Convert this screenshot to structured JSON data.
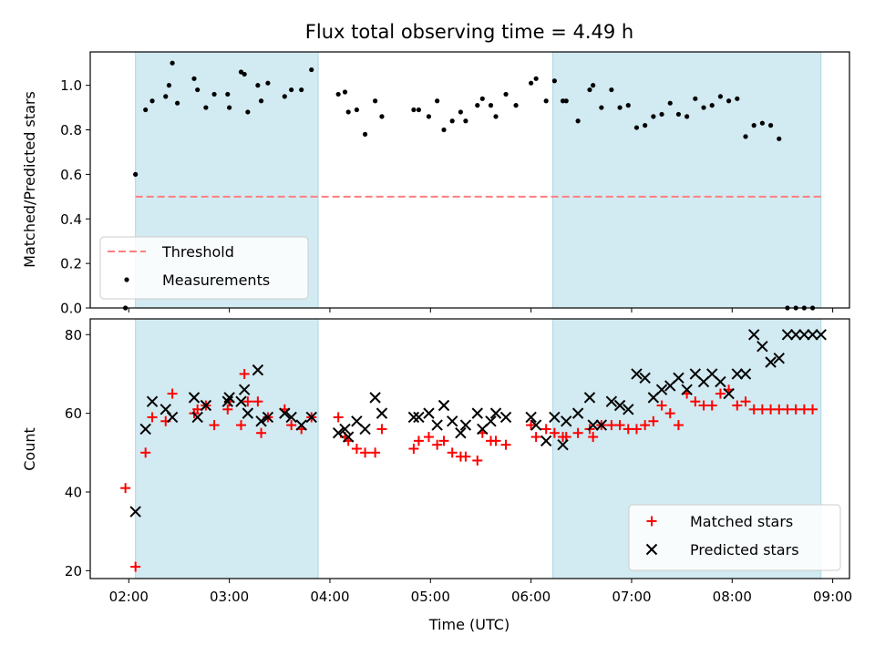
{
  "title": "Flux total observing time = 4.49 h",
  "colors": {
    "shade": "#add8e6",
    "threshold": "#ff7f7f",
    "measurements": "#000000",
    "matched": "#ff0000",
    "predicted": "#000000"
  },
  "chart_data": [
    {
      "type": "scatter",
      "ylabel": "Matched/Predicted stars",
      "ylim": [
        0,
        1.15
      ],
      "yticks": [
        0.0,
        0.2,
        0.4,
        0.6,
        0.8,
        1.0
      ],
      "ytick_labels": [
        "0.0",
        "0.2",
        "0.4",
        "0.6",
        "0.8",
        "1.0"
      ],
      "xlim": [
        "01:37",
        "09:10"
      ],
      "legend_location": "lower left",
      "shaded_ranges": [
        [
          "02:04",
          "03:53"
        ],
        [
          "06:13",
          "08:53"
        ]
      ],
      "threshold": {
        "name": "Threshold",
        "value": 0.5,
        "x_range": [
          "02:04",
          "08:53"
        ],
        "style": "dashed"
      },
      "series": [
        {
          "name": "Measurements",
          "marker": "dot",
          "x": [
            "01:58",
            "02:04",
            "02:10",
            "02:14",
            "02:22",
            "02:24",
            "02:26",
            "02:29",
            "02:39",
            "02:41",
            "02:46",
            "02:51",
            "02:59",
            "03:00",
            "03:07",
            "03:09",
            "03:11",
            "03:17",
            "03:19",
            "03:23",
            "03:33",
            "03:37",
            "03:43",
            "03:49",
            "04:05",
            "04:09",
            "04:11",
            "04:16",
            "04:21",
            "04:27",
            "04:31",
            "04:50",
            "04:53",
            "04:59",
            "05:04",
            "05:08",
            "05:13",
            "05:18",
            "05:21",
            "05:28",
            "05:31",
            "05:36",
            "05:39",
            "05:45",
            "05:51",
            "06:00",
            "06:03",
            "06:09",
            "06:14",
            "06:19",
            "06:21",
            "06:28",
            "06:35",
            "06:37",
            "06:42",
            "06:48",
            "06:53",
            "06:58",
            "07:03",
            "07:08",
            "07:13",
            "07:18",
            "07:23",
            "07:28",
            "07:33",
            "07:38",
            "07:43",
            "07:48",
            "07:53",
            "07:58",
            "08:03",
            "08:08",
            "08:13",
            "08:18",
            "08:23",
            "08:28",
            "08:33",
            "08:38",
            "08:43",
            "08:48"
          ],
          "y": [
            0.0,
            0.6,
            0.89,
            0.93,
            0.95,
            1.0,
            1.1,
            0.92,
            1.03,
            0.98,
            0.9,
            0.96,
            0.96,
            0.9,
            1.06,
            1.05,
            0.88,
            1.0,
            0.93,
            1.01,
            0.95,
            0.98,
            0.98,
            1.07,
            0.96,
            0.97,
            0.88,
            0.89,
            0.78,
            0.93,
            0.86,
            0.89,
            0.89,
            0.86,
            0.93,
            0.8,
            0.84,
            0.88,
            0.84,
            0.91,
            0.94,
            0.91,
            0.86,
            0.96,
            0.91,
            1.01,
            1.03,
            0.93,
            1.02,
            0.93,
            0.93,
            0.84,
            0.98,
            1.0,
            0.9,
            0.98,
            0.9,
            0.91,
            0.81,
            0.82,
            0.86,
            0.87,
            0.92,
            0.87,
            0.86,
            0.94,
            0.9,
            0.91,
            0.95,
            0.93,
            0.94,
            0.77,
            0.82,
            0.83,
            0.82,
            0.76,
            0.0,
            0.0,
            0.0,
            0.0
          ]
        }
      ]
    },
    {
      "type": "scatter",
      "xlabel": "Time (UTC)",
      "ylabel": "Count",
      "ylim": [
        18,
        84
      ],
      "yticks": [
        20,
        40,
        60,
        80
      ],
      "ytick_labels": [
        "20",
        "40",
        "60",
        "80"
      ],
      "xlim": [
        "01:37",
        "09:10"
      ],
      "xticks": [
        "02:00",
        "03:00",
        "04:00",
        "05:00",
        "06:00",
        "07:00",
        "08:00",
        "09:00"
      ],
      "legend_location": "lower right",
      "shaded_ranges": [
        [
          "02:04",
          "03:53"
        ],
        [
          "06:13",
          "08:53"
        ]
      ],
      "series": [
        {
          "name": "Matched stars",
          "marker": "plus",
          "x": [
            "01:58",
            "02:04",
            "02:10",
            "02:14",
            "02:22",
            "02:26",
            "02:39",
            "02:41",
            "02:46",
            "02:51",
            "02:59",
            "03:00",
            "03:07",
            "03:09",
            "03:11",
            "03:17",
            "03:19",
            "03:23",
            "03:33",
            "03:37",
            "03:43",
            "03:49",
            "04:05",
            "04:09",
            "04:11",
            "04:16",
            "04:21",
            "04:27",
            "04:31",
            "04:50",
            "04:53",
            "04:59",
            "05:04",
            "05:08",
            "05:13",
            "05:18",
            "05:21",
            "05:28",
            "05:31",
            "05:36",
            "05:39",
            "05:45",
            "06:00",
            "06:03",
            "06:09",
            "06:14",
            "06:19",
            "06:21",
            "06:28",
            "06:35",
            "06:37",
            "06:42",
            "06:48",
            "06:53",
            "06:58",
            "07:03",
            "07:08",
            "07:13",
            "07:18",
            "07:23",
            "07:28",
            "07:33",
            "07:38",
            "07:43",
            "07:48",
            "07:53",
            "07:58",
            "08:03",
            "08:08",
            "08:13",
            "08:18",
            "08:23",
            "08:28",
            "08:33",
            "08:38",
            "08:43",
            "08:48"
          ],
          "y": [
            41,
            21,
            50,
            59,
            58,
            65,
            60,
            61,
            62,
            57,
            61,
            63,
            57,
            70,
            63,
            63,
            55,
            59,
            61,
            57,
            56,
            59,
            59,
            54,
            53,
            51,
            50,
            50,
            56,
            51,
            53,
            54,
            52,
            53,
            50,
            49,
            49,
            48,
            55,
            53,
            53,
            52,
            57,
            54,
            56,
            55,
            54,
            54,
            55,
            56,
            54,
            57,
            57,
            57,
            56,
            56,
            57,
            58,
            62,
            60,
            57,
            65,
            63,
            62,
            62,
            65,
            66,
            62,
            63,
            61,
            61,
            61,
            61,
            61,
            61,
            61,
            61
          ]
        },
        {
          "name": "Predicted stars",
          "marker": "x",
          "x": [
            "02:04",
            "02:10",
            "02:14",
            "02:22",
            "02:26",
            "02:39",
            "02:41",
            "02:46",
            "02:59",
            "03:00",
            "03:07",
            "03:09",
            "03:11",
            "03:17",
            "03:19",
            "03:23",
            "03:33",
            "03:37",
            "03:43",
            "03:49",
            "04:05",
            "04:09",
            "04:11",
            "04:16",
            "04:21",
            "04:27",
            "04:31",
            "04:50",
            "04:53",
            "04:59",
            "05:04",
            "05:08",
            "05:13",
            "05:18",
            "05:21",
            "05:28",
            "05:31",
            "05:36",
            "05:39",
            "05:45",
            "06:00",
            "06:03",
            "06:09",
            "06:14",
            "06:19",
            "06:21",
            "06:28",
            "06:35",
            "06:37",
            "06:42",
            "06:48",
            "06:53",
            "06:58",
            "07:03",
            "07:08",
            "07:13",
            "07:18",
            "07:23",
            "07:28",
            "07:33",
            "07:38",
            "07:43",
            "07:48",
            "07:53",
            "07:58",
            "08:03",
            "08:08",
            "08:13",
            "08:18",
            "08:23",
            "08:28",
            "08:33",
            "08:38",
            "08:43",
            "08:48",
            "08:53"
          ],
          "y": [
            35,
            56,
            63,
            61,
            59,
            64,
            59,
            62,
            63,
            64,
            63,
            66,
            60,
            71,
            58,
            59,
            60,
            59,
            57,
            59,
            55,
            56,
            54,
            58,
            56,
            64,
            60,
            59,
            59,
            60,
            57,
            62,
            58,
            55,
            57,
            60,
            56,
            58,
            60,
            59,
            59,
            57,
            53,
            59,
            52,
            58,
            60,
            64,
            57,
            57,
            63,
            62,
            61,
            70,
            69,
            64,
            66,
            67,
            69,
            66,
            70,
            68,
            70,
            68,
            65,
            70,
            70,
            80,
            77,
            73,
            74,
            80,
            80,
            80,
            80,
            80
          ]
        }
      ]
    }
  ]
}
